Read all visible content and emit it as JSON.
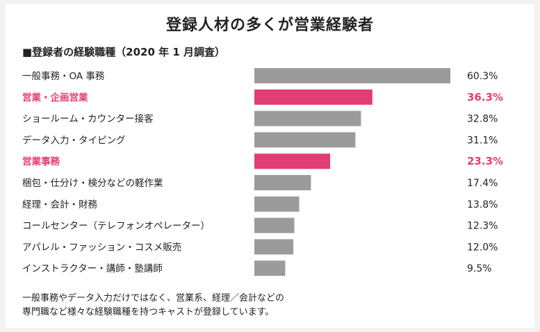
{
  "chart_data": {
    "type": "bar",
    "orientation": "horizontal",
    "title": "登録人材の多くが営業経験者",
    "subtitle": "■登録者の経験職種（2020 年 1 月調査）",
    "categories": [
      "一般事務・OA 事務",
      "営業・企画営業",
      "ショールーム・カウンター接客",
      "データ入力・タイピング",
      "営業事務",
      "梱包・仕分け・検分などの軽作業",
      "経理・会計・財務",
      "コールセンター（テレフォンオペレーター）",
      "アパレル・ファッション・コスメ販売",
      "インストラクター・講師・塾講師"
    ],
    "values": [
      60.3,
      36.3,
      32.8,
      31.1,
      23.3,
      17.4,
      13.8,
      12.3,
      12.0,
      9.5
    ],
    "value_labels": [
      "60.3%",
      "36.3%",
      "32.8%",
      "31.1%",
      "23.3%",
      "17.4%",
      "13.8%",
      "12.3%",
      "12.0%",
      "9.5%"
    ],
    "highlighted": [
      false,
      true,
      false,
      false,
      true,
      false,
      false,
      false,
      false,
      false
    ],
    "colors": {
      "default": "#9b9b9b",
      "highlight": "#e23d72",
      "text": "#222222"
    },
    "xlim": [
      0,
      60.3
    ],
    "grid": false,
    "legend": "none"
  },
  "footnote": {
    "lines": [
      "一般事務やデータ入力だけではなく、営業系、経理／会計などの",
      "専門職など様々な経験職種を持つキャストが登録しています。"
    ]
  }
}
